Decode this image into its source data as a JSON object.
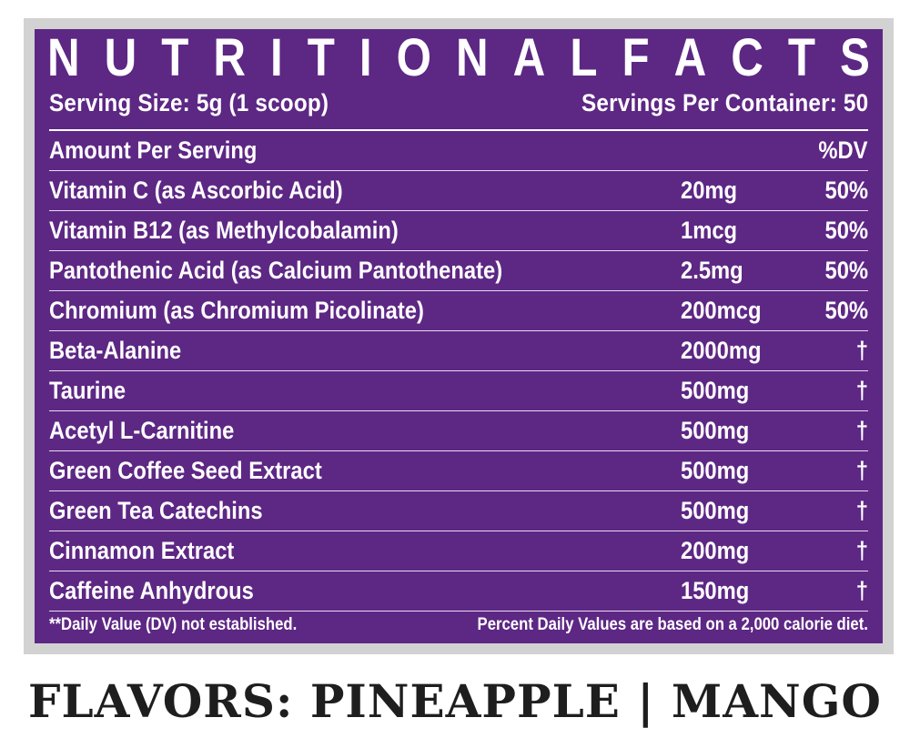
{
  "title_letters": [
    "N",
    "U",
    "T",
    "R",
    "I",
    "T",
    "I",
    "O",
    "N",
    "A",
    "L",
    "F",
    "A",
    "C",
    "T",
    "S"
  ],
  "serving_size": "Serving Size: 5g (1 scoop)",
  "servings_per_container": "Servings Per Container: 50",
  "header": {
    "amount_label": "Amount Per Serving",
    "dv_label": "%DV"
  },
  "rows": [
    {
      "name": "Vitamin C (as Ascorbic Acid)",
      "amount": "20mg",
      "dv": "50%"
    },
    {
      "name": "Vitamin B12 (as Methylcobalamin)",
      "amount": "1mcg",
      "dv": "50%"
    },
    {
      "name": "Pantothenic Acid (as Calcium Pantothenate)",
      "amount": "2.5mg",
      "dv": "50%"
    },
    {
      "name": "Chromium (as Chromium Picolinate)",
      "amount": "200mcg",
      "dv": "50%"
    },
    {
      "name": "Beta-Alanine",
      "amount": "2000mg",
      "dv": "†"
    },
    {
      "name": "Taurine",
      "amount": "500mg",
      "dv": "†"
    },
    {
      "name": "Acetyl L-Carnitine",
      "amount": "500mg",
      "dv": "†"
    },
    {
      "name": "Green Coffee Seed Extract",
      "amount": "500mg",
      "dv": "†"
    },
    {
      "name": "Green Tea Catechins",
      "amount": "500mg",
      "dv": "†"
    },
    {
      "name": "Cinnamon Extract",
      "amount": "200mg",
      "dv": "†"
    },
    {
      "name": "Caffeine Anhydrous",
      "amount": "150mg",
      "dv": "†"
    }
  ],
  "footer": {
    "dv_note": "**Daily Value (DV) not established.",
    "calorie_note": "Percent Daily Values are based on a 2,000 calorie diet."
  },
  "flavors": "FLAVORS: PINEAPPLE | MANGO",
  "colors": {
    "panel": "#5d2784",
    "frame": "#d2d2d2",
    "text": "#ffffff",
    "flavors_text": "#1e1e1e"
  }
}
